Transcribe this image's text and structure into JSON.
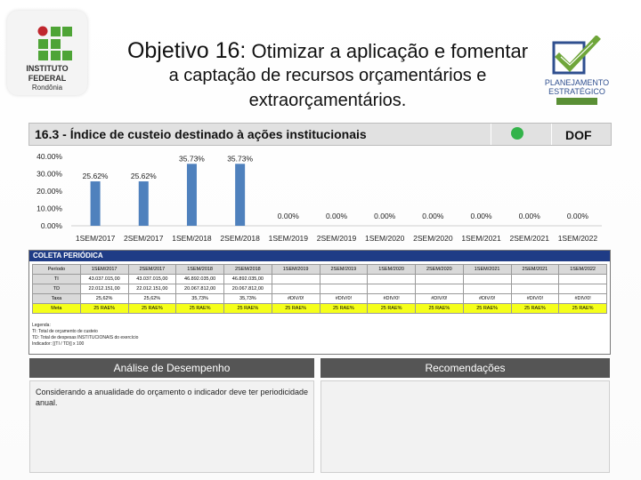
{
  "header": {
    "title_prefix": "Objetivo 16:",
    "title_line1_rest": "Otimizar a aplicação e fomentar",
    "title_line2": "a captação de recursos orçamentários e",
    "title_line3": "extraorçamentários."
  },
  "logos": {
    "left": {
      "line1": "INSTITUTO",
      "line2": "FEDERAL",
      "line3": "Rondônia",
      "brand_green": "#4ea436",
      "brand_red": "#c0262d"
    },
    "right": {
      "line1": "PLANEJAMENTO",
      "line2": "ESTRATÉGICO",
      "check_color": "#6fa63a",
      "text_color": "#2f4f8f"
    }
  },
  "indicator": {
    "title": "16.3 - Índice de custeio destinado à ações institucionais",
    "status_color": "#33b34a",
    "owner": "DOF"
  },
  "chart_data": {
    "type": "bar",
    "categories": [
      "1SEM/2017",
      "2SEM/2017",
      "1SEM/2018",
      "2SEM/2018",
      "1SEM/2019",
      "2SEM/2019",
      "1SEM/2020",
      "2SEM/2020",
      "1SEM/2021",
      "2SEM/2021",
      "1SEM/2022"
    ],
    "values": [
      25.62,
      25.62,
      35.73,
      35.73,
      0,
      0,
      0,
      0,
      0,
      0,
      0
    ],
    "value_labels": [
      "25.62%",
      "25.62%",
      "35.73%",
      "35.73%",
      "0.00%",
      "0.00%",
      "0.00%",
      "0.00%",
      "0.00%",
      "0.00%",
      "0.00%"
    ],
    "yticks": [
      "40.00%",
      "30.00%",
      "20.00%",
      "10.00%",
      "0.00%"
    ],
    "ytick_values": [
      40,
      30,
      20,
      10,
      0
    ],
    "ylim": [
      0,
      40
    ],
    "bar_color": "#4f81bd"
  },
  "table": {
    "caption": "COLETA PERIÓDICA",
    "header": [
      "Período",
      "1SEM/2017",
      "2SEM/2017",
      "1SEM/2018",
      "2SEM/2018",
      "1SEM/2019",
      "2SEM/2019",
      "1SEM/2020",
      "2SEM/2020",
      "1SEM/2021",
      "2SEM/2021",
      "1SEM/2022"
    ],
    "rows": [
      {
        "label": "TI",
        "cells": [
          "43.037.015,00",
          "43.037.015,00",
          "46.892.035,00",
          "46.892.035,00",
          "",
          "",
          "",
          "",
          "",
          "",
          ""
        ]
      },
      {
        "label": "TD",
        "cells": [
          "22.012.151,00",
          "22.012.151,00",
          "20.067.812,00",
          "20.067.812,00",
          "",
          "",
          "",
          "",
          "",
          "",
          ""
        ]
      },
      {
        "label": "Taxa",
        "cells": [
          "25,62%",
          "25,62%",
          "35,73%",
          "35,73%",
          "#DIV/0!",
          "#DIV/0!",
          "#DIV/0!",
          "#DIV/0!",
          "#DIV/0!",
          "#DIV/0!",
          "#DIV/0!"
        ]
      },
      {
        "label": "Meta",
        "cells": [
          "25 RAE%",
          "25 RAE%",
          "25 RAE%",
          "25 RAE%",
          "25 RAE%",
          "25 RAE%",
          "25 RAE%",
          "25 RAE%",
          "25 RAE%",
          "25 RAE%",
          "25 RAE%"
        ]
      }
    ],
    "legend": [
      "Legenda:",
      "TI: Total de orçamento de custeio",
      "TD: Total de despesas INSTITUCIONAIS do exercício",
      "Indicador: [(TI / TD)] x 100"
    ],
    "meta_color": "#f5ff1a",
    "caption_color": "#1f3c86"
  },
  "analysis": {
    "title": "Análise de Desempenho",
    "body": "Considerando a anualidade do orçamento o indicador deve ter periodicidade anual."
  },
  "recommendations": {
    "title": "Recomendações",
    "body": ""
  }
}
